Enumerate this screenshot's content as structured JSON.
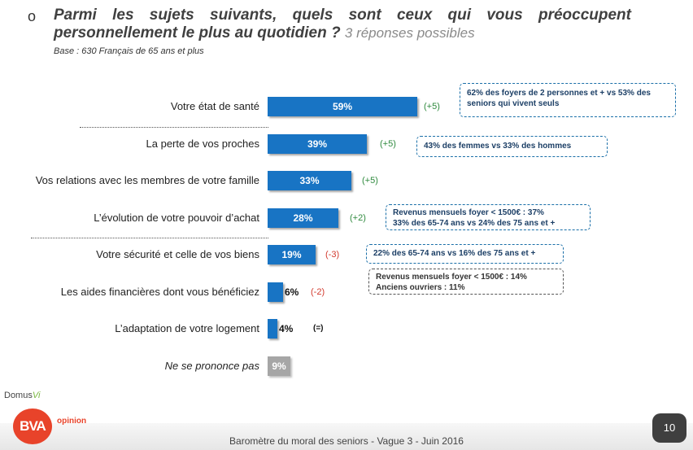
{
  "header": {
    "bullet": "o",
    "question": "Parmi les sujets suivants, quels sont ceux qui vous préoccupent personnellement le plus au quotidien ?",
    "question_sub": "3 réponses possibles",
    "base": "Base : 630 Français de 65 ans et plus"
  },
  "chart_data": {
    "type": "bar",
    "orientation": "horizontal",
    "unit": "%",
    "xlim": [
      0,
      100
    ],
    "categories": [
      "Votre état de santé",
      "La perte de vos proches",
      "Vos relations avec les membres de votre famille",
      "L’évolution de votre pouvoir d’achat",
      "Votre sécurité et celle de vos biens",
      "Les aides financières dont vous bénéficiez",
      "L’adaptation de votre logement",
      "Ne se prononce pas"
    ],
    "values": [
      59,
      39,
      33,
      28,
      19,
      6,
      4,
      9
    ],
    "value_labels": [
      "59%",
      "39%",
      "33%",
      "28%",
      "19%",
      "6%",
      "4%",
      "9%"
    ],
    "evolutions": [
      "(+5)",
      "(+5)",
      "(+5)",
      "(+2)",
      "(-3)",
      "(-2)",
      "(=)",
      ""
    ],
    "evolution_signs": [
      "pos",
      "pos",
      "pos",
      "pos",
      "neg",
      "neg",
      "neu",
      ""
    ],
    "annotations": [
      "62% des foyers de 2 personnes et + vs 53% des seniors qui vivent seuls",
      "43% des femmes vs 33% des hommes",
      "Revenus mensuels foyer < 1500€ : 37%",
      "33% des 65-74 ans vs 24% des 75 ans et +",
      "22% des 65-74 ans vs 16% des 75 ans et +",
      "Revenus mensuels foyer < 1500€ : 14%",
      "Anciens ouvriers : 11%"
    ]
  },
  "colors": {
    "bar": "#1874c4",
    "bar_na": "#a6a6a6",
    "positive": "#2f8a3e",
    "negative": "#d23a2e",
    "box_border": "#1a6fa8"
  },
  "branding": {
    "domus": "Domus",
    "domus_vi": "Vi",
    "bva": "BVA",
    "opinion": "opinion"
  },
  "footer": {
    "text": "Baromètre du moral des seniors - Vague 3 - Juin 2016",
    "page_number": "10"
  }
}
